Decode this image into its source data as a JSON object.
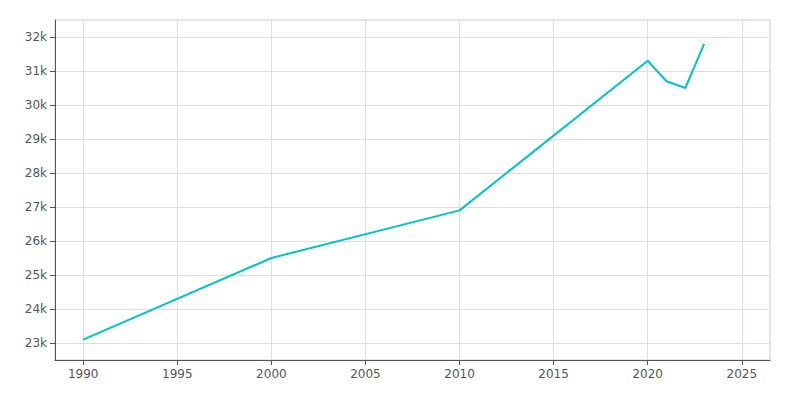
{
  "chart_data": {
    "type": "line",
    "x": [
      1990,
      2000,
      2010,
      2020,
      2021,
      2022,
      2023
    ],
    "values": [
      23100,
      25500,
      26900,
      31300,
      30700,
      30500,
      31800
    ],
    "color": "#00C5C5",
    "xlim": [
      1988.5,
      2026.5
    ],
    "ylim": [
      22500,
      32500
    ],
    "xticks": [
      1990,
      1995,
      2000,
      2005,
      2010,
      2015,
      2020,
      2025
    ],
    "yticks": [
      {
        "value": 23000,
        "label": "23k"
      },
      {
        "value": 24000,
        "label": "24k"
      },
      {
        "value": 25000,
        "label": "25k"
      },
      {
        "value": 26000,
        "label": "26k"
      },
      {
        "value": 27000,
        "label": "27k"
      },
      {
        "value": 28000,
        "label": "28k"
      },
      {
        "value": 29000,
        "label": "29k"
      },
      {
        "value": 30000,
        "label": "30k"
      },
      {
        "value": 31000,
        "label": "31k"
      },
      {
        "value": 32000,
        "label": "32k"
      }
    ],
    "grid": true
  }
}
